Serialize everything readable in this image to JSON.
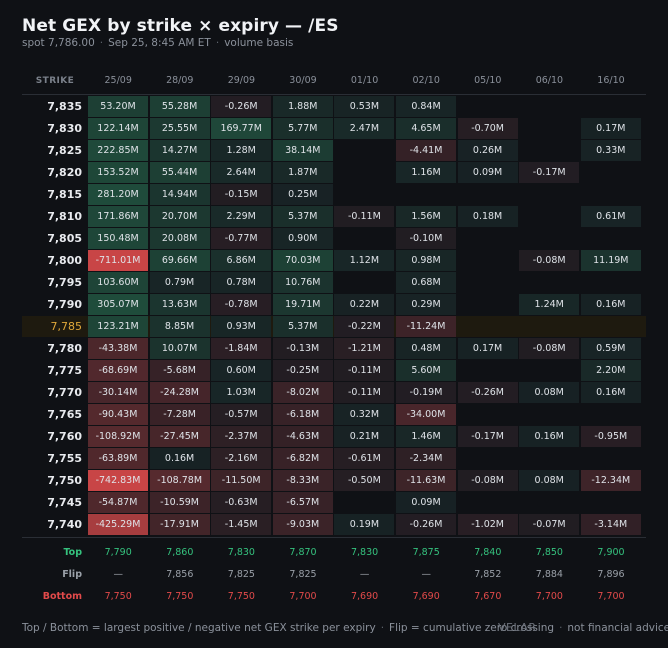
{
  "header": {
    "title": "Net GEX by strike × expiry — /ES",
    "spot_label": "spot 7,786.00",
    "time_label": "Sep 25, 8:45 AM ET",
    "basis_label": "volume basis"
  },
  "colors": {
    "positive": "#2f9e68",
    "negative": "#e04b4b",
    "neutral_cell": "#161a20",
    "spot_row": "#e0a83a",
    "top": "#35c27e",
    "flip": "#9aa0a8",
    "bottom": "#e24a4a"
  },
  "chart_data": {
    "type": "heatmap",
    "title": "Net GEX by strike × expiry — /ES",
    "row_header": "STRIKE",
    "spot_strike": "7,785",
    "expiries": [
      "25/09",
      "28/09",
      "29/09",
      "30/09",
      "01/10",
      "02/10",
      "05/10",
      "06/10",
      "16/10"
    ],
    "strikes": [
      "7,835",
      "7,830",
      "7,825",
      "7,820",
      "7,815",
      "7,810",
      "7,805",
      "7,800",
      "7,795",
      "7,790",
      "7,785",
      "7,780",
      "7,775",
      "7,770",
      "7,765",
      "7,760",
      "7,755",
      "7,750",
      "7,745",
      "7,740"
    ],
    "cells": [
      [
        "53.20M",
        "55.28M",
        "-0.26M",
        "1.88M",
        "0.53M",
        "0.84M",
        "",
        "",
        ""
      ],
      [
        "122.14M",
        "25.55M",
        "169.77M",
        "5.77M",
        "2.47M",
        "4.65M",
        "-0.70M",
        "",
        "0.17M"
      ],
      [
        "222.85M",
        "14.27M",
        "1.28M",
        "38.14M",
        "",
        "-4.41M",
        "0.26M",
        "",
        "0.33M"
      ],
      [
        "153.52M",
        "55.44M",
        "2.64M",
        "1.87M",
        "",
        "1.16M",
        "0.09M",
        "-0.17M",
        ""
      ],
      [
        "281.20M",
        "14.94M",
        "-0.15M",
        "0.25M",
        "",
        "",
        "",
        "",
        ""
      ],
      [
        "171.86M",
        "20.70M",
        "2.29M",
        "5.37M",
        "-0.11M",
        "1.56M",
        "0.18M",
        "",
        "0.61M"
      ],
      [
        "150.48M",
        "20.08M",
        "-0.77M",
        "0.90M",
        "",
        "-0.10M",
        "",
        "",
        ""
      ],
      [
        "-711.01M",
        "69.66M",
        "6.86M",
        "70.03M",
        "1.12M",
        "0.98M",
        "",
        "-0.08M",
        "11.19M"
      ],
      [
        "103.60M",
        "0.79M",
        "0.78M",
        "10.76M",
        "",
        "0.68M",
        "",
        "",
        ""
      ],
      [
        "305.07M",
        "13.63M",
        "-0.78M",
        "19.71M",
        "0.22M",
        "0.29M",
        "",
        "1.24M",
        "0.16M"
      ],
      [
        "123.21M",
        "8.85M",
        "0.93M",
        "5.37M",
        "-0.22M",
        "-11.24M",
        "",
        "",
        ""
      ],
      [
        "-43.38M",
        "10.07M",
        "-1.84M",
        "-0.13M",
        "-1.21M",
        "0.48M",
        "0.17M",
        "-0.08M",
        "0.59M"
      ],
      [
        "-68.69M",
        "-5.68M",
        "0.60M",
        "-0.25M",
        "-0.11M",
        "5.60M",
        "",
        "",
        "2.20M"
      ],
      [
        "-30.14M",
        "-24.28M",
        "1.03M",
        "-8.02M",
        "-0.11M",
        "-0.19M",
        "-0.26M",
        "0.08M",
        "0.16M"
      ],
      [
        "-90.43M",
        "-7.28M",
        "-0.57M",
        "-6.18M",
        "0.32M",
        "-34.00M",
        "",
        "",
        ""
      ],
      [
        "-108.92M",
        "-27.45M",
        "-2.37M",
        "-4.63M",
        "0.21M",
        "1.46M",
        "-0.17M",
        "0.16M",
        "-0.95M"
      ],
      [
        "-63.89M",
        "0.16M",
        "-2.16M",
        "-6.82M",
        "-0.61M",
        "-2.34M",
        "",
        "",
        ""
      ],
      [
        "-742.83M",
        "-108.78M",
        "-11.50M",
        "-8.33M",
        "-0.50M",
        "-11.63M",
        "-0.08M",
        "0.08M",
        "-12.34M"
      ],
      [
        "-54.87M",
        "-10.59M",
        "-0.63M",
        "-6.57M",
        "",
        "0.09M",
        "",
        "",
        ""
      ],
      [
        "-425.29M",
        "-17.91M",
        "-1.45M",
        "-9.03M",
        "0.19M",
        "-0.26M",
        "-1.02M",
        "-0.07M",
        "-3.14M"
      ]
    ],
    "summary": {
      "top": {
        "label": "Top",
        "values": [
          "7,790",
          "7,860",
          "7,830",
          "7,870",
          "7,830",
          "7,875",
          "7,840",
          "7,850",
          "7,900"
        ]
      },
      "flip": {
        "label": "Flip",
        "values": [
          "—",
          "7,856",
          "7,825",
          "7,825",
          "—",
          "—",
          "7,852",
          "7,884",
          "7,896"
        ]
      },
      "bottom": {
        "label": "Bottom",
        "values": [
          "7,750",
          "7,750",
          "7,750",
          "7,700",
          "7,690",
          "7,690",
          "7,670",
          "7,700",
          "7,700"
        ]
      }
    }
  },
  "footer": {
    "legend_text": "Top / Bottom = largest positive / negative net GEX strike per expiry",
    "flip_text": "Flip = cumulative zero crossing",
    "disclaimer": "not financial advice",
    "watermark": "VELAR"
  }
}
